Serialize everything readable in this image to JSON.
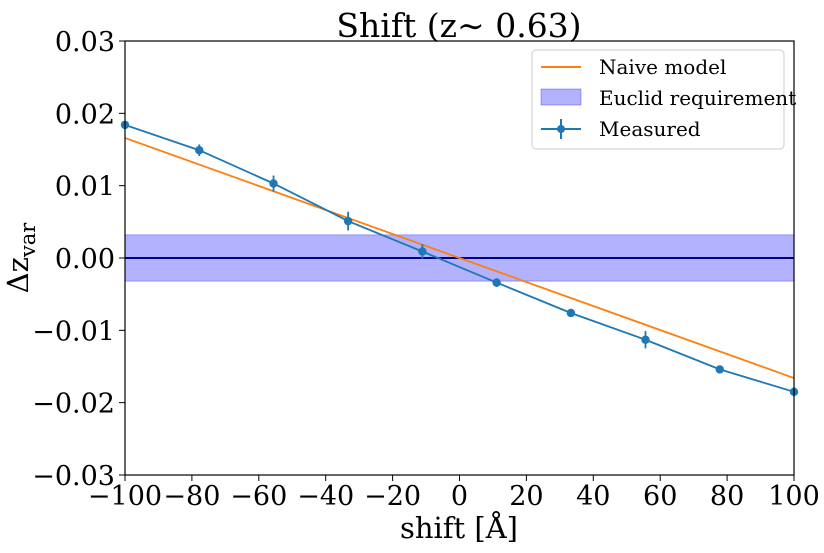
{
  "chart_data": {
    "type": "line",
    "title": "Shift (z∼ 0.63)",
    "xlabel": "shift [Å]",
    "ylabel": {
      "base": "Δz",
      "subscript": "var"
    },
    "xlim": [
      -100,
      100
    ],
    "ylim": [
      -0.03,
      0.03
    ],
    "xticks": [
      -100,
      -80,
      -60,
      -40,
      -20,
      0,
      20,
      40,
      60,
      80,
      100
    ],
    "xtick_labels": [
      "−100",
      "−80",
      "−60",
      "−40",
      "−20",
      "0",
      "20",
      "40",
      "60",
      "80",
      "100"
    ],
    "yticks": [
      -0.03,
      -0.02,
      -0.01,
      0.0,
      0.01,
      0.02,
      0.03
    ],
    "ytick_labels": [
      "−0.03",
      "−0.02",
      "−0.01",
      "0.00",
      "0.01",
      "0.02",
      "0.03"
    ],
    "grid": false,
    "legend_position": "top-right",
    "series": [
      {
        "name": "Naive model",
        "kind": "line",
        "color": "#ff7f0e",
        "x": [
          -100,
          100
        ],
        "y": [
          0.0166,
          -0.0166
        ]
      },
      {
        "name": "Measured",
        "kind": "errorbar",
        "color": "#1f77b4",
        "x": [
          -100,
          -77.8,
          -55.6,
          -33.3,
          -11.1,
          11.1,
          33.3,
          55.6,
          77.8,
          100
        ],
        "y": [
          0.0184,
          0.0149,
          0.0103,
          0.0051,
          0.0009,
          -0.0034,
          -0.0076,
          -0.0113,
          -0.0154,
          -0.0185
        ],
        "yerr": [
          0.0004,
          0.0008,
          0.0011,
          0.0013,
          0.001,
          0.0006,
          0.0003,
          0.0012,
          0.0005,
          0.0006
        ]
      }
    ],
    "band": {
      "name": "Euclid requirement",
      "color": "#0000ff",
      "alpha": 0.3,
      "y_range": [
        -0.0032,
        0.0032
      ]
    },
    "reference_line": {
      "y": 0.0,
      "color": "#00008b"
    }
  }
}
